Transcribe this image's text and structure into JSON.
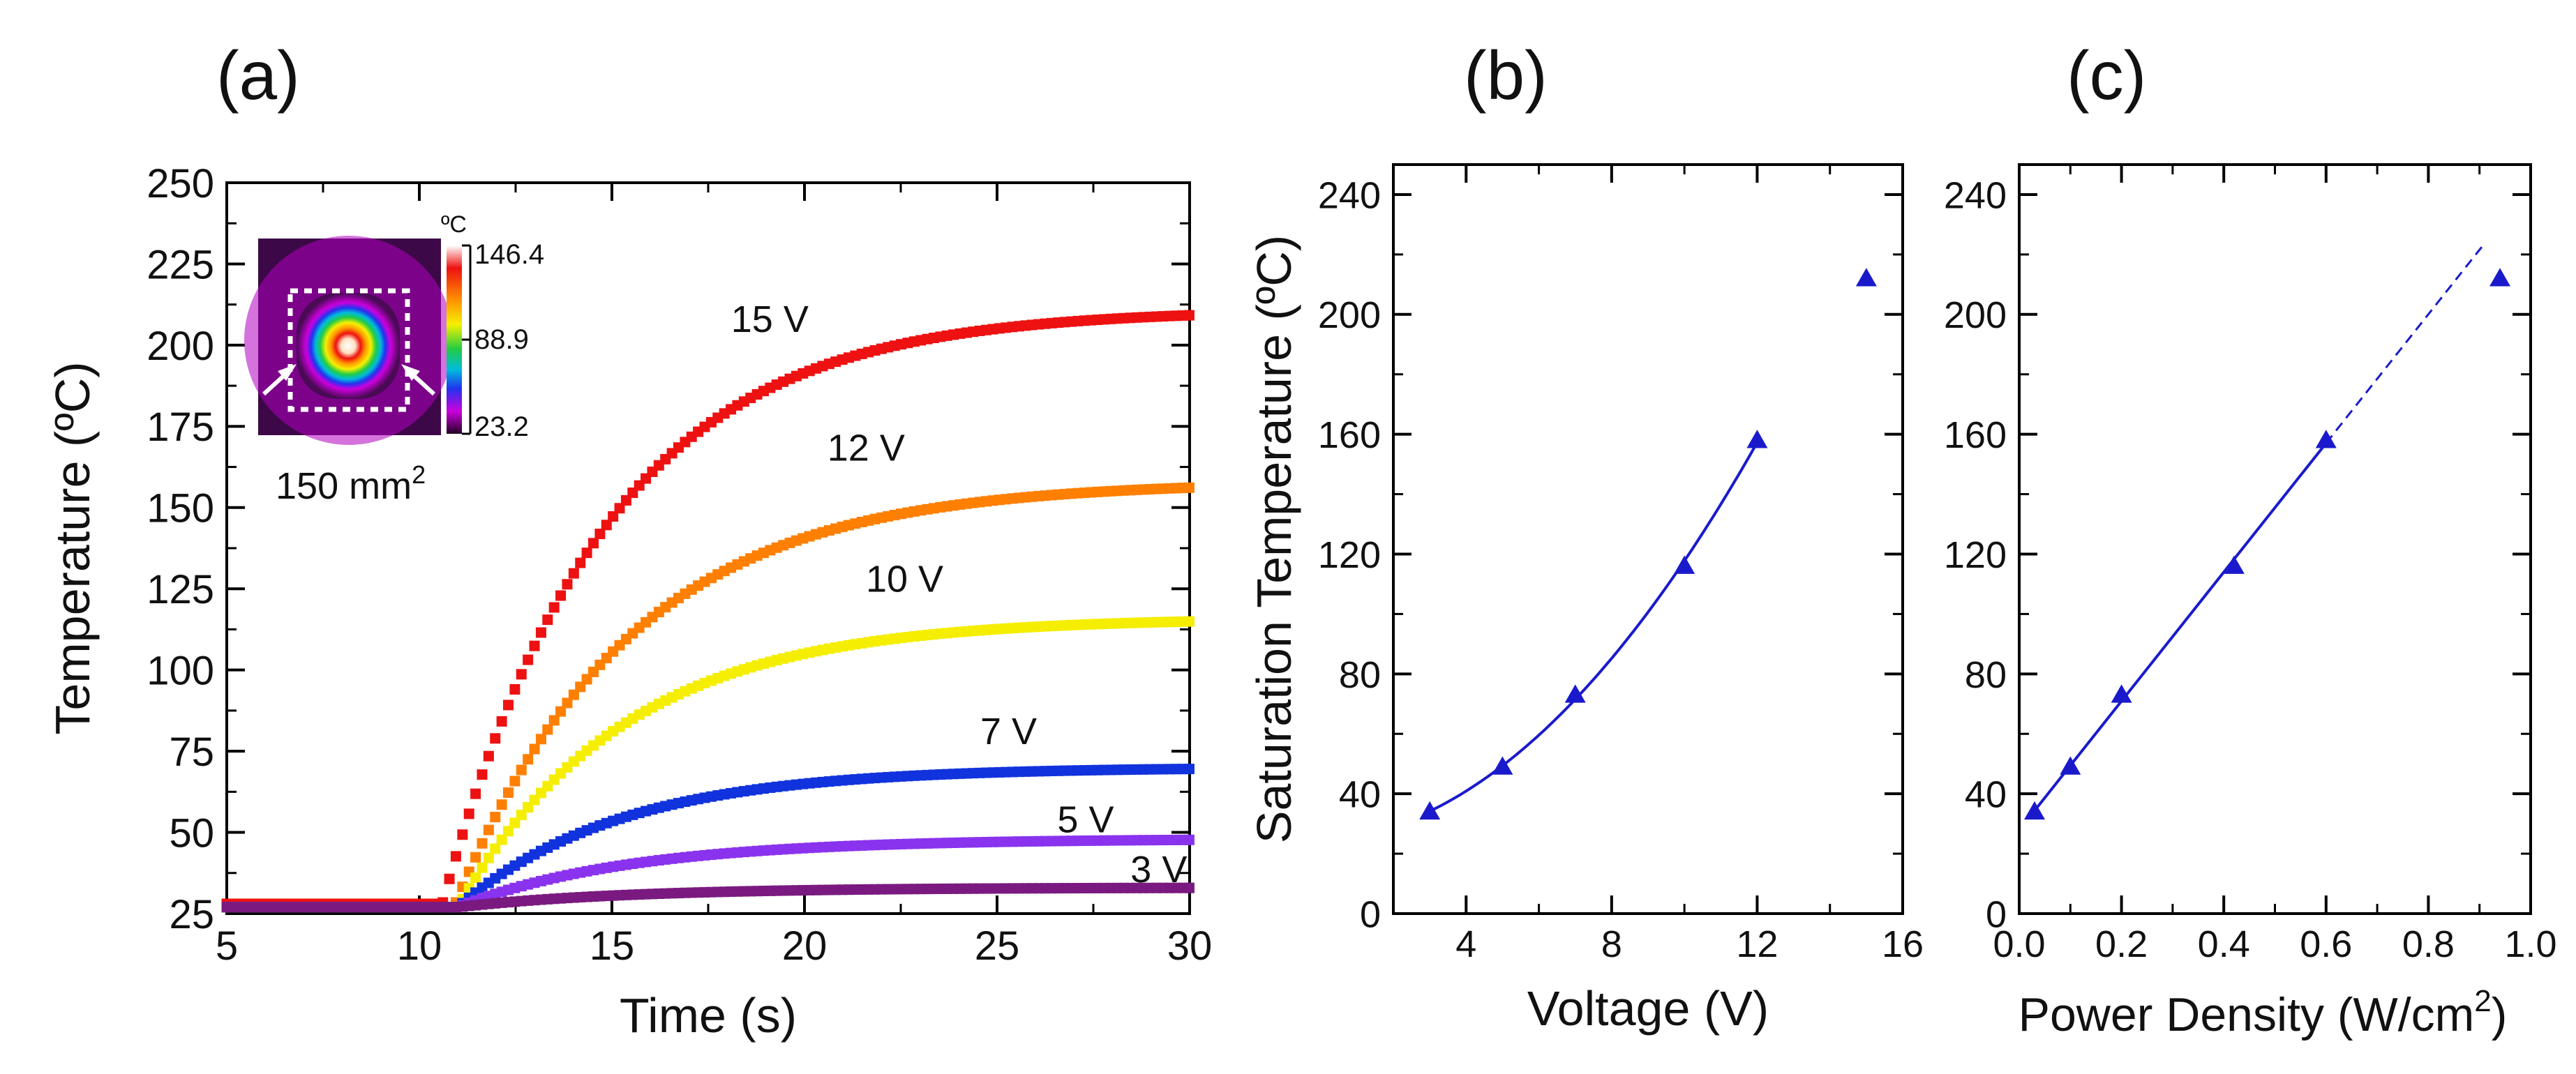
{
  "chart_data": [
    {
      "panel": "(a)",
      "type": "line",
      "xlabel": "Time (s)",
      "ylabel": "Temperature (ºC)",
      "xlim": [
        5,
        30
      ],
      "ylim": [
        25,
        250
      ],
      "xticks": [
        "5",
        "10",
        "15",
        "20",
        "25",
        "30"
      ],
      "yticks": [
        "25",
        "50",
        "75",
        "100",
        "125",
        "150",
        "175",
        "200",
        "225",
        "250"
      ],
      "series": [
        {
          "name": "15 V",
          "label": "15 V",
          "color": "#ee1111",
          "baseline": 28,
          "onset": 10.6,
          "saturation": 211,
          "tau": 4.2
        },
        {
          "name": "12 V",
          "label": "12 V",
          "color": "#ff7f00",
          "baseline": 27,
          "onset": 10.9,
          "saturation": 158,
          "tau": 4.5
        },
        {
          "name": "10 V",
          "label": "10 V",
          "color": "#f5ee00",
          "baseline": 27,
          "onset": 11.0,
          "saturation": 116,
          "tau": 4.3
        },
        {
          "name": "7 V",
          "label": "7 V",
          "color": "#1133dd",
          "baseline": 27,
          "onset": 11.0,
          "saturation": 70,
          "tau": 4.2
        },
        {
          "name": "5 V",
          "label": "5 V",
          "color": "#8a33ee",
          "baseline": 27,
          "onset": 11.0,
          "saturation": 48,
          "tau": 4.5
        },
        {
          "name": "3 V",
          "label": "3 V",
          "color": "#7a1a80",
          "baseline": 27,
          "onset": 11.0,
          "saturation": 33,
          "tau": 4.5
        }
      ],
      "inset": {
        "unit": "ºC",
        "colorbar_ticks": [
          "146.4",
          "88.9",
          "23.2"
        ],
        "caption": "150 mm",
        "caption_sup": "2"
      }
    },
    {
      "panel": "(b)",
      "type": "scatter",
      "xlabel": "Voltage (V)",
      "ylabel": "Saturation Temperature (ºC)",
      "xlim": [
        2,
        16
      ],
      "ylim": [
        0,
        250
      ],
      "xticks": [
        "4",
        "8",
        "12",
        "16"
      ],
      "yticks": [
        "0",
        "40",
        "80",
        "120",
        "160",
        "200",
        "240"
      ],
      "points": [
        {
          "x": 3,
          "y": 34
        },
        {
          "x": 5,
          "y": 49
        },
        {
          "x": 7,
          "y": 73
        },
        {
          "x": 10,
          "y": 116
        },
        {
          "x": 12,
          "y": 158
        },
        {
          "x": 15,
          "y": 212
        }
      ],
      "fit": {
        "type": "quadratic",
        "x_range": [
          3,
          12
        ]
      },
      "marker_color": "#1a1acc"
    },
    {
      "panel": "(c)",
      "type": "scatter",
      "xlabel": "Power Density (W/cm",
      "xlabel_sup": "2",
      "xlabel_end": ")",
      "ylabel": "",
      "xlim": [
        0,
        1.0
      ],
      "ylim": [
        0,
        250
      ],
      "xticks": [
        "0.0",
        "0.2",
        "0.4",
        "0.6",
        "0.8",
        "1.0"
      ],
      "yticks": [
        "0",
        "40",
        "80",
        "120",
        "160",
        "200",
        "240"
      ],
      "points": [
        {
          "x": 0.03,
          "y": 34
        },
        {
          "x": 0.1,
          "y": 49
        },
        {
          "x": 0.2,
          "y": 73
        },
        {
          "x": 0.42,
          "y": 116
        },
        {
          "x": 0.6,
          "y": 158
        },
        {
          "x": 0.94,
          "y": 212
        }
      ],
      "fit": {
        "type": "linear",
        "x_range": [
          0.03,
          0.6
        ],
        "extrapolate_to": 0.91
      },
      "marker_color": "#1a1acc"
    }
  ]
}
